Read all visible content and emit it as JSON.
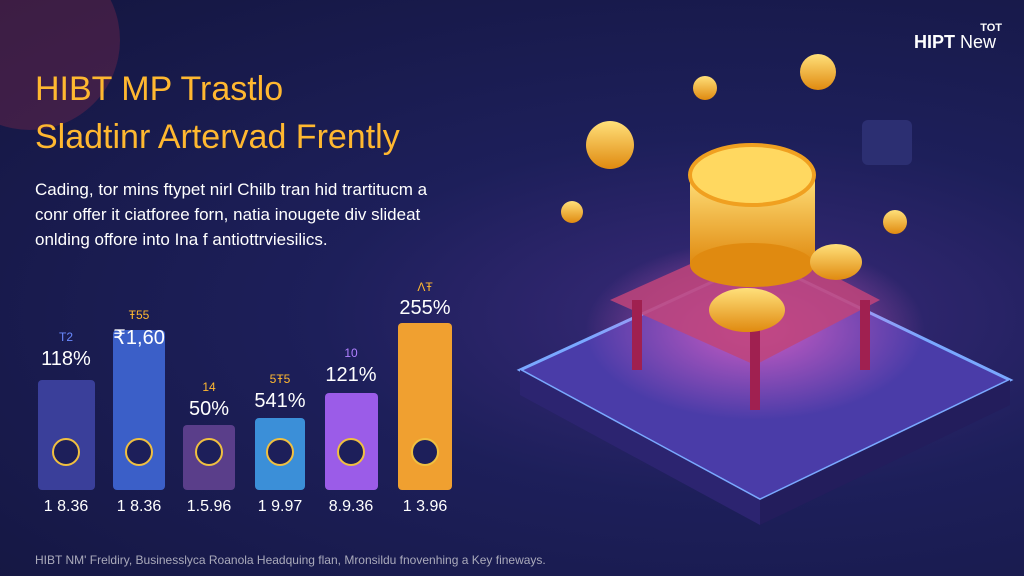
{
  "logo": {
    "small": "TOT",
    "main": "HIPT",
    "sub": "New"
  },
  "title": [
    "HIBT MP Trastlo",
    "Sladtinr Artervad Frently"
  ],
  "description": [
    "Cading, tor mins ftypet nirl Chilb tran hid trartitucm a",
    "conr offer it ciatforee forn, natia inougete div slideat",
    "onlding offore into Ina f antiottrviesilics."
  ],
  "bars": [
    {
      "tag": "T2",
      "label": "118%",
      "footer": "1 8.36"
    },
    {
      "tag": "Ŧ55",
      "label": "₹1,60",
      "footer": "1 8.36"
    },
    {
      "tag": "14",
      "label": "50%",
      "footer": "1.5.96"
    },
    {
      "tag": "5Ŧ5",
      "label": "541%",
      "footer": "1 9.97"
    },
    {
      "tag": "10",
      "label": "121%",
      "footer": "8.9.36"
    },
    {
      "tag": "ɅŦ",
      "label": "255%",
      "footer": "1 3.96"
    }
  ],
  "footer": "HIBT NM' Freldiry, Businesslyca Roanola Headquing flan, Mronsildu fnovenhing a Key fineways."
}
